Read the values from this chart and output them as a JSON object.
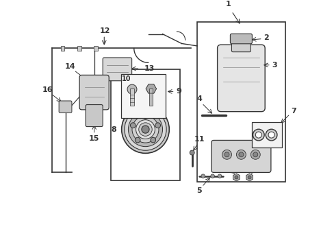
{
  "bg_color": "#ffffff",
  "line_color": "#333333",
  "light_gray": "#cccccc",
  "mid_gray": "#888888",
  "dark_gray": "#555555",
  "figsize": [
    4.89,
    3.6
  ],
  "dpi": 100
}
